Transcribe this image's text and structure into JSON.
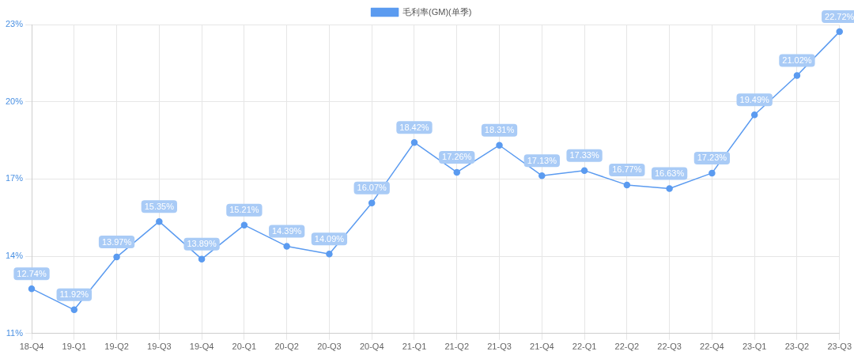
{
  "chart_data": {
    "type": "line",
    "categories": [
      "18-Q4",
      "19-Q1",
      "19-Q2",
      "19-Q3",
      "19-Q4",
      "20-Q1",
      "20-Q2",
      "20-Q3",
      "20-Q4",
      "21-Q1",
      "21-Q2",
      "21-Q3",
      "21-Q4",
      "22-Q1",
      "22-Q2",
      "22-Q3",
      "22-Q4",
      "23-Q1",
      "23-Q2",
      "23-Q3"
    ],
    "series": [
      {
        "name": "毛利率(GM)(单季)",
        "color": "#5b9bf0",
        "values": [
          12.74,
          11.92,
          13.97,
          15.35,
          13.89,
          15.21,
          14.39,
          14.09,
          16.07,
          18.42,
          17.26,
          18.31,
          17.13,
          17.33,
          16.77,
          16.63,
          17.23,
          19.49,
          21.02,
          22.72
        ],
        "value_labels": [
          "12.74%",
          "11.92%",
          "13.97%",
          "15.35%",
          "13.89%",
          "15.21%",
          "14.39%",
          "14.09%",
          "16.07%",
          "18.42%",
          "17.26%",
          "18.31%",
          "17.13%",
          "17.33%",
          "16.77%",
          "16.63%",
          "17.23%",
          "19.49%",
          "21.02%",
          "22.72%"
        ]
      }
    ],
    "ylim": [
      11,
      23
    ],
    "yticks": [
      {
        "value": 11,
        "label": "11%"
      },
      {
        "value": 14,
        "label": "14%"
      },
      {
        "value": 17,
        "label": "17%"
      },
      {
        "value": 20,
        "label": "20%"
      },
      {
        "value": 23,
        "label": "23%"
      }
    ],
    "grid": true,
    "legend": "top",
    "marker": "circle",
    "line_style": "solid"
  }
}
